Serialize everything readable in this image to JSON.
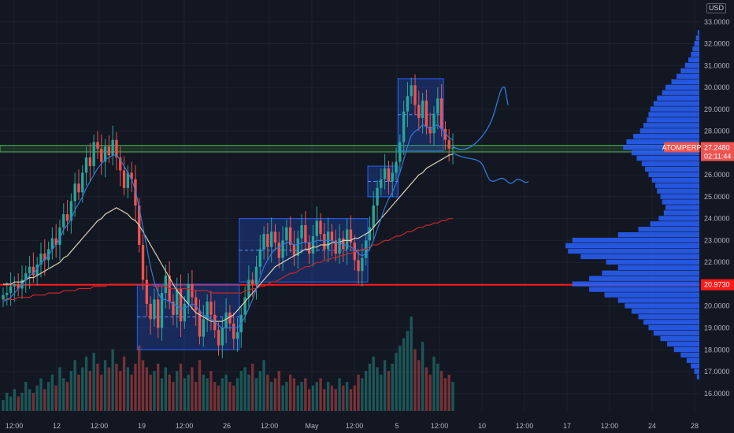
{
  "header": {
    "currency": "USD",
    "currency_corner": "3"
  },
  "colors": {
    "background": "#131722",
    "grid": "#1e2230",
    "up": "#26a69a",
    "down": "#ef5350",
    "ma_fast": "#2f7ad9",
    "ma_mid": "#d8d1b6",
    "ma_slow": "#c62828",
    "level_red": "#ff1a1a",
    "zone_green": "#4caf50",
    "box_fill": "rgba(41,98,255,0.25)",
    "box_stroke": "#2962ff",
    "forecast": "#2f7ad9",
    "profile": "#2962ff"
  },
  "chart_data": {
    "type": "candlestick",
    "symbol_label": "ATOMPERP",
    "y_ticks": [
      "33.0000",
      "32.0000",
      "31.0000",
      "30.0000",
      "29.0000",
      "28.0000",
      "27.0000",
      "26.0000",
      "25.0000",
      "24.0000",
      "23.0000",
      "22.0000",
      "21.0000",
      "20.0000",
      "19.0000",
      "18.0000",
      "17.0000",
      "16.0000"
    ],
    "ylim": [
      15.2,
      34.0
    ],
    "x_ticks": [
      "12:00",
      "12",
      "12:00",
      "19",
      "12:00",
      "26",
      "12:00",
      "May",
      "12:00",
      "5",
      "12:00",
      "10",
      "12:00",
      "17",
      "12:00",
      "24",
      "28"
    ],
    "price_tag": {
      "label": "ATOMPERP",
      "value": "27.2480",
      "countdown": "02:11:44",
      "price": 27.248
    },
    "level_tag": {
      "value": "20.9730",
      "price": 20.973
    },
    "horizontal_levels": {
      "red_line": 20.973,
      "green_zone": [
        27.05,
        27.35
      ]
    },
    "boxes": [
      {
        "from_bar": 0,
        "to_bar": 1,
        "low": 18.0,
        "high": 21.0
      },
      {
        "from_bar": 2,
        "to_bar": 3,
        "low": 21.1,
        "high": 24.0
      },
      {
        "from_bar": 4,
        "to_bar": 5,
        "low": 25.0,
        "high": 26.4
      },
      {
        "from_bar": 6,
        "to_bar": 7,
        "low": 27.1,
        "high": 30.4
      }
    ],
    "closes": [
      20.5,
      20.6,
      20.9,
      21.0,
      20.8,
      21.2,
      21.5,
      21.8,
      21.4,
      21.9,
      22.4,
      22.1,
      22.6,
      23.1,
      22.8,
      23.6,
      24.2,
      23.9,
      24.8,
      25.6,
      25.2,
      26.1,
      26.8,
      26.4,
      27.5,
      27.2,
      26.6,
      27.3,
      26.9,
      27.6,
      26.8,
      26.2,
      25.4,
      26.1,
      25.8,
      24.6,
      22.8,
      21.2,
      20.1,
      19.4,
      20.3,
      19.0,
      20.6,
      21.4,
      20.2,
      19.6,
      20.8,
      19.3,
      20.1,
      21.0,
      20.4,
      19.8,
      18.6,
      19.4,
      20.2,
      19.6,
      18.9,
      18.2,
      19.0,
      19.7,
      19.2,
      18.5,
      18.8,
      19.6,
      20.4,
      21.2,
      21.0,
      21.8,
      22.6,
      23.3,
      22.7,
      23.4,
      22.9,
      22.2,
      23.0,
      23.6,
      22.8,
      22.3,
      23.1,
      23.7,
      22.9,
      22.4,
      23.2,
      23.9,
      23.3,
      22.6,
      23.4,
      23.0,
      22.4,
      23.1,
      22.6,
      23.5,
      22.9,
      22.1,
      21.6,
      22.2,
      23.0,
      23.6,
      24.6,
      25.4,
      25.8,
      26.3,
      25.7,
      26.1,
      26.6,
      27.5,
      28.9,
      29.6,
      30.1,
      29.2,
      28.6,
      29.4,
      28.2,
      27.9,
      28.8,
      29.5,
      28.1,
      27.6,
      27.2,
      27.25
    ],
    "volumes": [
      3,
      5,
      4,
      6,
      4,
      5,
      8,
      6,
      5,
      7,
      9,
      6,
      8,
      10,
      7,
      12,
      9,
      8,
      11,
      14,
      10,
      12,
      15,
      11,
      16,
      13,
      10,
      14,
      12,
      17,
      13,
      11,
      15,
      12,
      10,
      13,
      18,
      14,
      12,
      10,
      11,
      13,
      9,
      12,
      10,
      8,
      11,
      13,
      9,
      10,
      12,
      8,
      14,
      10,
      9,
      11,
      8,
      7,
      9,
      10,
      8,
      7,
      9,
      11,
      12,
      10,
      13,
      9,
      11,
      14,
      10,
      8,
      9,
      11,
      7,
      8,
      10,
      9,
      7,
      8,
      9,
      6,
      7,
      8,
      9,
      6,
      8,
      7,
      6,
      9,
      7,
      8,
      6,
      7,
      10,
      9,
      11,
      13,
      15,
      12,
      10,
      14,
      11,
      13,
      16,
      18,
      20,
      22,
      26,
      17,
      14,
      19,
      12,
      10,
      15,
      13,
      11,
      9,
      10,
      8
    ],
    "ma_fast": [
      20.2,
      20.3,
      20.4,
      20.6,
      20.8,
      21.0,
      21.2,
      21.4,
      21.5,
      21.7,
      22.0,
      22.1,
      22.3,
      22.6,
      22.8,
      23.1,
      23.5,
      23.7,
      24.0,
      24.4,
      24.7,
      25.0,
      25.4,
      25.7,
      26.0,
      26.3,
      26.5,
      26.7,
      26.8,
      26.9,
      26.9,
      26.7,
      26.4,
      26.1,
      25.8,
      25.3,
      24.5,
      23.6,
      22.7,
      21.8,
      21.1,
      20.6,
      20.3,
      20.3,
      20.2,
      20.1,
      20.0,
      19.9,
      19.9,
      20.0,
      20.1,
      20.0,
      19.8,
      19.6,
      19.5,
      19.4,
      19.3,
      19.1,
      19.0,
      19.0,
      19.0,
      19.0,
      19.0,
      19.2,
      19.5,
      19.9,
      20.3,
      20.8,
      21.3,
      21.8,
      22.1,
      22.4,
      22.6,
      22.7,
      22.8,
      22.9,
      22.9,
      22.8,
      22.8,
      22.9,
      22.9,
      22.9,
      22.9,
      23.0,
      23.0,
      23.0,
      23.0,
      23.0,
      22.9,
      22.9,
      22.8,
      22.8,
      22.7,
      22.6,
      22.4,
      22.3,
      22.4,
      22.6,
      23.0,
      23.5,
      24.0,
      24.5,
      24.9,
      25.2,
      25.6,
      26.1,
      26.7,
      27.3,
      27.8,
      28.0,
      28.1,
      28.3,
      28.2,
      28.1,
      28.2,
      28.3,
      28.1,
      27.9,
      27.7,
      27.6
    ],
    "ma_mid": [
      21.0,
      21.0,
      21.0,
      21.1,
      21.1,
      21.1,
      21.2,
      21.3,
      21.3,
      21.4,
      21.5,
      21.6,
      21.7,
      21.8,
      21.9,
      22.0,
      22.2,
      22.3,
      22.5,
      22.7,
      22.9,
      23.1,
      23.3,
      23.5,
      23.7,
      23.9,
      24.0,
      24.2,
      24.3,
      24.4,
      24.5,
      24.4,
      24.3,
      24.2,
      24.0,
      23.9,
      23.7,
      23.4,
      23.1,
      22.8,
      22.5,
      22.2,
      21.9,
      21.6,
      21.3,
      21.0,
      20.7,
      20.5,
      20.3,
      20.1,
      19.9,
      19.7,
      19.6,
      19.5,
      19.4,
      19.3,
      19.3,
      19.3,
      19.3,
      19.4,
      19.5,
      19.6,
      19.8,
      20.0,
      20.2,
      20.4,
      20.6,
      20.8,
      21.0,
      21.2,
      21.4,
      21.6,
      21.8,
      21.9,
      22.0,
      22.1,
      22.2,
      22.3,
      22.4,
      22.5,
      22.6,
      22.6,
      22.7,
      22.7,
      22.8,
      22.8,
      22.8,
      22.9,
      22.9,
      22.9,
      23.0,
      23.0,
      23.0,
      23.1,
      23.1,
      23.2,
      23.3,
      23.4,
      23.6,
      23.8,
      24.0,
      24.2,
      24.4,
      24.6,
      24.8,
      25.0,
      25.2,
      25.4,
      25.6,
      25.8,
      26.0,
      26.1,
      26.3,
      26.4,
      26.5,
      26.6,
      26.7,
      26.8,
      26.9,
      26.95
    ],
    "ma_slow": [
      20.3,
      20.3,
      20.3,
      20.3,
      20.4,
      20.4,
      20.4,
      20.4,
      20.5,
      20.5,
      20.5,
      20.5,
      20.6,
      20.6,
      20.6,
      20.6,
      20.7,
      20.7,
      20.7,
      20.7,
      20.8,
      20.8,
      20.8,
      20.8,
      20.9,
      20.9,
      20.9,
      20.9,
      21.0,
      21.0,
      21.0,
      21.0,
      21.0,
      21.0,
      21.0,
      21.0,
      21.0,
      21.0,
      21.0,
      21.0,
      20.9,
      20.9,
      20.9,
      20.9,
      20.8,
      20.8,
      20.8,
      20.8,
      20.8,
      20.8,
      20.7,
      20.7,
      20.7,
      20.7,
      20.7,
      20.6,
      20.6,
      20.6,
      20.6,
      20.6,
      20.6,
      20.6,
      20.6,
      20.6,
      20.7,
      20.7,
      20.8,
      20.8,
      20.9,
      20.9,
      21.0,
      21.1,
      21.1,
      21.2,
      21.3,
      21.4,
      21.5,
      21.5,
      21.6,
      21.7,
      21.8,
      21.8,
      21.9,
      22.0,
      22.0,
      22.1,
      22.1,
      22.2,
      22.2,
      22.3,
      22.3,
      22.4,
      22.4,
      22.5,
      22.5,
      22.6,
      22.6,
      22.7,
      22.8,
      22.8,
      22.9,
      23.0,
      23.0,
      23.1,
      23.2,
      23.2,
      23.3,
      23.4,
      23.4,
      23.5,
      23.6,
      23.6,
      23.7,
      23.7,
      23.8,
      23.8,
      23.9,
      23.9,
      24.0,
      24.0
    ],
    "volume_profile": [
      {
        "price": 32.5,
        "vol": 2
      },
      {
        "price": 32.25,
        "vol": 4
      },
      {
        "price": 32.0,
        "vol": 6
      },
      {
        "price": 31.75,
        "vol": 8
      },
      {
        "price": 31.5,
        "vol": 10
      },
      {
        "price": 31.25,
        "vol": 13
      },
      {
        "price": 31.0,
        "vol": 17
      },
      {
        "price": 30.75,
        "vol": 22
      },
      {
        "price": 30.5,
        "vol": 27
      },
      {
        "price": 30.25,
        "vol": 33
      },
      {
        "price": 30.0,
        "vol": 40
      },
      {
        "price": 29.75,
        "vol": 44
      },
      {
        "price": 29.5,
        "vol": 50
      },
      {
        "price": 29.25,
        "vol": 54
      },
      {
        "price": 29.0,
        "vol": 58
      },
      {
        "price": 28.75,
        "vol": 60
      },
      {
        "price": 28.5,
        "vol": 62
      },
      {
        "price": 28.25,
        "vol": 66
      },
      {
        "price": 28.0,
        "vol": 70
      },
      {
        "price": 27.75,
        "vol": 78
      },
      {
        "price": 27.5,
        "vol": 86
      },
      {
        "price": 27.25,
        "vol": 90
      },
      {
        "price": 27.0,
        "vol": 80
      },
      {
        "price": 26.75,
        "vol": 74
      },
      {
        "price": 26.5,
        "vol": 68
      },
      {
        "price": 26.25,
        "vol": 64
      },
      {
        "price": 26.0,
        "vol": 60
      },
      {
        "price": 25.75,
        "vol": 56
      },
      {
        "price": 25.5,
        "vol": 52
      },
      {
        "price": 25.25,
        "vol": 50
      },
      {
        "price": 25.0,
        "vol": 46
      },
      {
        "price": 24.75,
        "vol": 44
      },
      {
        "price": 24.5,
        "vol": 40
      },
      {
        "price": 24.25,
        "vol": 42
      },
      {
        "price": 24.0,
        "vol": 48
      },
      {
        "price": 23.75,
        "vol": 58
      },
      {
        "price": 23.5,
        "vol": 72
      },
      {
        "price": 23.25,
        "vol": 96
      },
      {
        "price": 23.0,
        "vol": 150
      },
      {
        "price": 22.75,
        "vol": 158
      },
      {
        "price": 22.5,
        "vol": 155
      },
      {
        "price": 22.25,
        "vol": 140
      },
      {
        "price": 22.0,
        "vol": 110
      },
      {
        "price": 21.75,
        "vol": 96
      },
      {
        "price": 21.5,
        "vol": 115
      },
      {
        "price": 21.25,
        "vol": 130
      },
      {
        "price": 21.0,
        "vol": 150
      },
      {
        "price": 20.75,
        "vol": 130
      },
      {
        "price": 20.5,
        "vol": 112
      },
      {
        "price": 20.25,
        "vol": 96
      },
      {
        "price": 20.0,
        "vol": 88
      },
      {
        "price": 19.75,
        "vol": 80
      },
      {
        "price": 19.5,
        "vol": 72
      },
      {
        "price": 19.25,
        "vol": 66
      },
      {
        "price": 19.0,
        "vol": 60
      },
      {
        "price": 18.75,
        "vol": 54
      },
      {
        "price": 18.5,
        "vol": 46
      },
      {
        "price": 18.25,
        "vol": 38
      },
      {
        "price": 18.0,
        "vol": 30
      },
      {
        "price": 17.75,
        "vol": 22
      },
      {
        "price": 17.5,
        "vol": 15
      },
      {
        "price": 17.25,
        "vol": 10
      },
      {
        "price": 17.0,
        "vol": 6
      },
      {
        "price": 16.75,
        "vol": 3
      }
    ]
  }
}
